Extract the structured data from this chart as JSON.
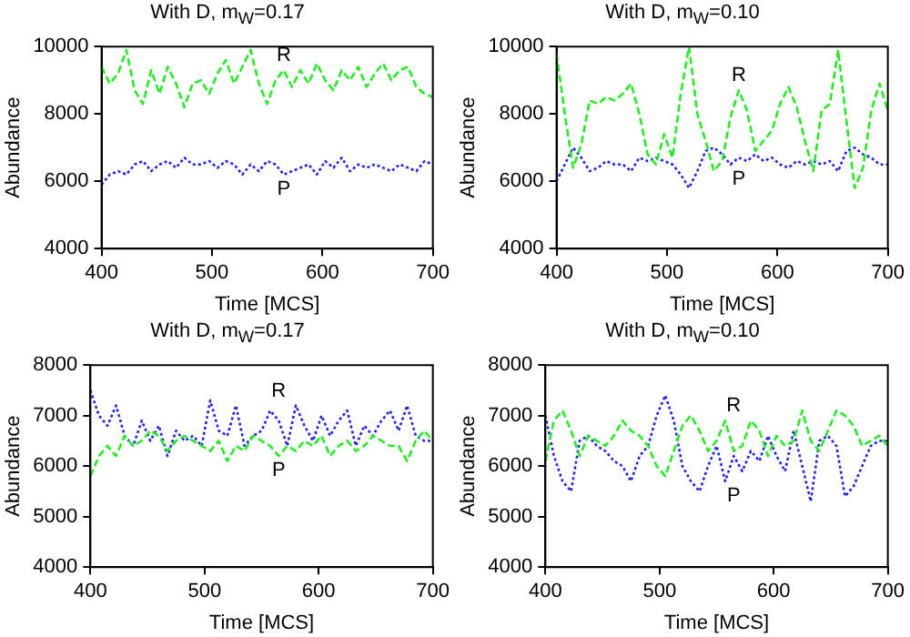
{
  "chart_data": [
    {
      "type": "line",
      "title": "With D, m$_{W}$=0.17",
      "xlabel": "Time [MCS]",
      "ylabel": "Abundance",
      "x": [
        400,
        407.5,
        415,
        422.5,
        430,
        437.5,
        445,
        452.5,
        460,
        467.5,
        475,
        482.5,
        490,
        497.5,
        505,
        512.5,
        520,
        527.5,
        535,
        542.5,
        550,
        557.5,
        565,
        572.5,
        580,
        587.5,
        595,
        602.5,
        610,
        617.5,
        625,
        632.5,
        640,
        647.5,
        655,
        662.5,
        670,
        677.5,
        685,
        692.5,
        700
      ],
      "series": [
        {
          "name": "R",
          "color": "#22ee22",
          "line_style": "dashed",
          "values": [
            9400,
            8900,
            9200,
            9900,
            8700,
            8300,
            9300,
            8600,
            9400,
            8900,
            8200,
            8900,
            9000,
            8600,
            9200,
            9600,
            8900,
            9400,
            9900,
            8900,
            8300,
            9000,
            9300,
            8800,
            9300,
            8900,
            9500,
            9000,
            8700,
            9300,
            9000,
            9400,
            8800,
            9200,
            9500,
            9000,
            9300,
            9400,
            8800,
            8600,
            8500
          ]
        },
        {
          "name": "P",
          "color": "#2222ee",
          "line_style": "dotted",
          "values": [
            5900,
            6200,
            6300,
            6200,
            6500,
            6600,
            6300,
            6500,
            6600,
            6400,
            6700,
            6500,
            6500,
            6600,
            6400,
            6600,
            6500,
            6200,
            6500,
            6300,
            6600,
            6500,
            6200,
            6300,
            6400,
            6500,
            6200,
            6600,
            6400,
            6700,
            6300,
            6500,
            6400,
            6500,
            6400,
            6300,
            6500,
            6400,
            6300,
            6600,
            6500
          ]
        }
      ],
      "xlim": [
        400,
        700
      ],
      "xticks": [
        400,
        500,
        600,
        700
      ],
      "ylim": [
        4000,
        10000
      ],
      "yticks": [
        4000,
        6000,
        8000,
        10000
      ],
      "grid": false,
      "legend": false,
      "marker": "none"
    },
    {
      "type": "line",
      "title": "With D, m$_{W}$=0.10",
      "xlabel": "Time [MCS]",
      "ylabel": "Abundance",
      "x": [
        400,
        407.5,
        415,
        422.5,
        430,
        437.5,
        445,
        452.5,
        460,
        467.5,
        475,
        482.5,
        490,
        497.5,
        505,
        512.5,
        520,
        527.5,
        535,
        542.5,
        550,
        557.5,
        565,
        572.5,
        580,
        587.5,
        595,
        602.5,
        610,
        617.5,
        625,
        632.5,
        640,
        647.5,
        655,
        662.5,
        670,
        677.5,
        685,
        692.5,
        700
      ],
      "series": [
        {
          "name": "R",
          "color": "#22ee22",
          "line_style": "dashed",
          "values": [
            9800,
            8000,
            6400,
            7100,
            8400,
            8300,
            8500,
            8400,
            8600,
            8900,
            8000,
            6800,
            6500,
            7400,
            6700,
            8600,
            10000,
            8000,
            7200,
            6300,
            6600,
            7900,
            8700,
            8100,
            6900,
            7200,
            7500,
            8300,
            8800,
            8200,
            7200,
            6300,
            8100,
            8300,
            9900,
            7800,
            5800,
            6400,
            8100,
            8900,
            8100
          ]
        },
        {
          "name": "P",
          "color": "#2222ee",
          "line_style": "dotted",
          "values": [
            6000,
            6500,
            7000,
            6700,
            6300,
            6400,
            6600,
            6500,
            6500,
            6300,
            6700,
            6600,
            6700,
            6600,
            6500,
            6200,
            5800,
            6300,
            6900,
            7000,
            6800,
            6500,
            6700,
            6600,
            6800,
            6600,
            6700,
            6500,
            6400,
            6600,
            6500,
            6600,
            6500,
            6600,
            6300,
            6900,
            7000,
            6800,
            6700,
            6500,
            6500
          ]
        }
      ],
      "xlim": [
        400,
        700
      ],
      "xticks": [
        400,
        500,
        600,
        700
      ],
      "ylim": [
        4000,
        10000
      ],
      "yticks": [
        4000,
        6000,
        8000,
        10000
      ],
      "grid": false,
      "legend": false,
      "marker": "none"
    },
    {
      "type": "line",
      "title": "With  D, m$_{W}$=0.17",
      "xlabel": "Time [MCS]",
      "ylabel": "Abundance",
      "x": [
        400,
        407.5,
        415,
        422.5,
        430,
        437.5,
        445,
        452.5,
        460,
        467.5,
        475,
        482.5,
        490,
        497.5,
        505,
        512.5,
        520,
        527.5,
        535,
        542.5,
        550,
        557.5,
        565,
        572.5,
        580,
        587.5,
        595,
        602.5,
        610,
        617.5,
        625,
        632.5,
        640,
        647.5,
        655,
        662.5,
        670,
        677.5,
        685,
        692.5,
        700
      ],
      "series": [
        {
          "name": "P",
          "color": "#22ee22",
          "line_style": "dashed",
          "values": [
            5800,
            6200,
            6400,
            6200,
            6600,
            6400,
            6500,
            6700,
            6600,
            6300,
            6500,
            6600,
            6500,
            6400,
            6300,
            6500,
            6100,
            6400,
            6300,
            6600,
            6500,
            6400,
            6200,
            6400,
            6300,
            6500,
            6400,
            6600,
            6200,
            6400,
            6500,
            6300,
            6400,
            6600,
            6500,
            6400,
            6400,
            6100,
            6500,
            6700,
            6500
          ]
        },
        {
          "name": "R",
          "color": "#2222ee",
          "line_style": "dotted",
          "values": [
            7500,
            7000,
            6800,
            7200,
            6600,
            6400,
            6900,
            6500,
            6800,
            6200,
            6700,
            6500,
            6600,
            6400,
            7300,
            6700,
            6600,
            7200,
            6400,
            6600,
            6700,
            7100,
            6900,
            6400,
            7200,
            6800,
            6500,
            7000,
            6600,
            6900,
            7100,
            6400,
            6800,
            6600,
            6900,
            7100,
            6700,
            7200,
            6600,
            6500,
            6500
          ]
        }
      ],
      "xlim": [
        400,
        700
      ],
      "xticks": [
        400,
        500,
        600,
        700
      ],
      "ylim": [
        4000,
        8000
      ],
      "yticks": [
        4000,
        5000,
        6000,
        7000,
        8000
      ],
      "grid": false,
      "legend": false,
      "marker": "none"
    },
    {
      "type": "line",
      "title": "With D, m$_{W}$=0.10",
      "xlabel": "Time [MCS]",
      "ylabel": "Abundance",
      "x": [
        400,
        407.5,
        415,
        422.5,
        430,
        437.5,
        445,
        452.5,
        460,
        467.5,
        475,
        482.5,
        490,
        497.5,
        505,
        512.5,
        520,
        527.5,
        535,
        542.5,
        550,
        557.5,
        565,
        572.5,
        580,
        587.5,
        595,
        602.5,
        610,
        617.5,
        625,
        632.5,
        640,
        647.5,
        655,
        662.5,
        670,
        677.5,
        685,
        692.5,
        700
      ],
      "series": [
        {
          "name": "R",
          "color": "#22ee22",
          "line_style": "dashed",
          "values": [
            6100,
            6900,
            7100,
            6700,
            6200,
            6600,
            6500,
            6400,
            6600,
            6900,
            6700,
            6600,
            6400,
            6000,
            5800,
            6300,
            6800,
            7000,
            6700,
            6300,
            6500,
            6900,
            6300,
            6400,
            6900,
            6700,
            6200,
            6600,
            6400,
            6500,
            7100,
            6500,
            6300,
            6700,
            7100,
            7000,
            6800,
            6400,
            6500,
            6600,
            6400
          ]
        },
        {
          "name": "P",
          "color": "#2222ee",
          "line_style": "dotted",
          "values": [
            7000,
            6200,
            5700,
            5500,
            6500,
            6600,
            6400,
            6300,
            6100,
            6000,
            5700,
            6200,
            6400,
            7000,
            7400,
            6900,
            6000,
            5700,
            5500,
            6000,
            6400,
            5700,
            6200,
            5900,
            6300,
            6100,
            6600,
            6200,
            5900,
            6700,
            6000,
            5300,
            6500,
            6600,
            6400,
            5400,
            5600,
            6000,
            6400,
            6500,
            6500
          ]
        }
      ],
      "xlim": [
        400,
        700
      ],
      "xticks": [
        400,
        500,
        600,
        700
      ],
      "ylim": [
        4000,
        8000
      ],
      "yticks": [
        4000,
        5000,
        6000,
        7000,
        8000
      ],
      "grid": false,
      "legend": false,
      "marker": "none"
    }
  ]
}
